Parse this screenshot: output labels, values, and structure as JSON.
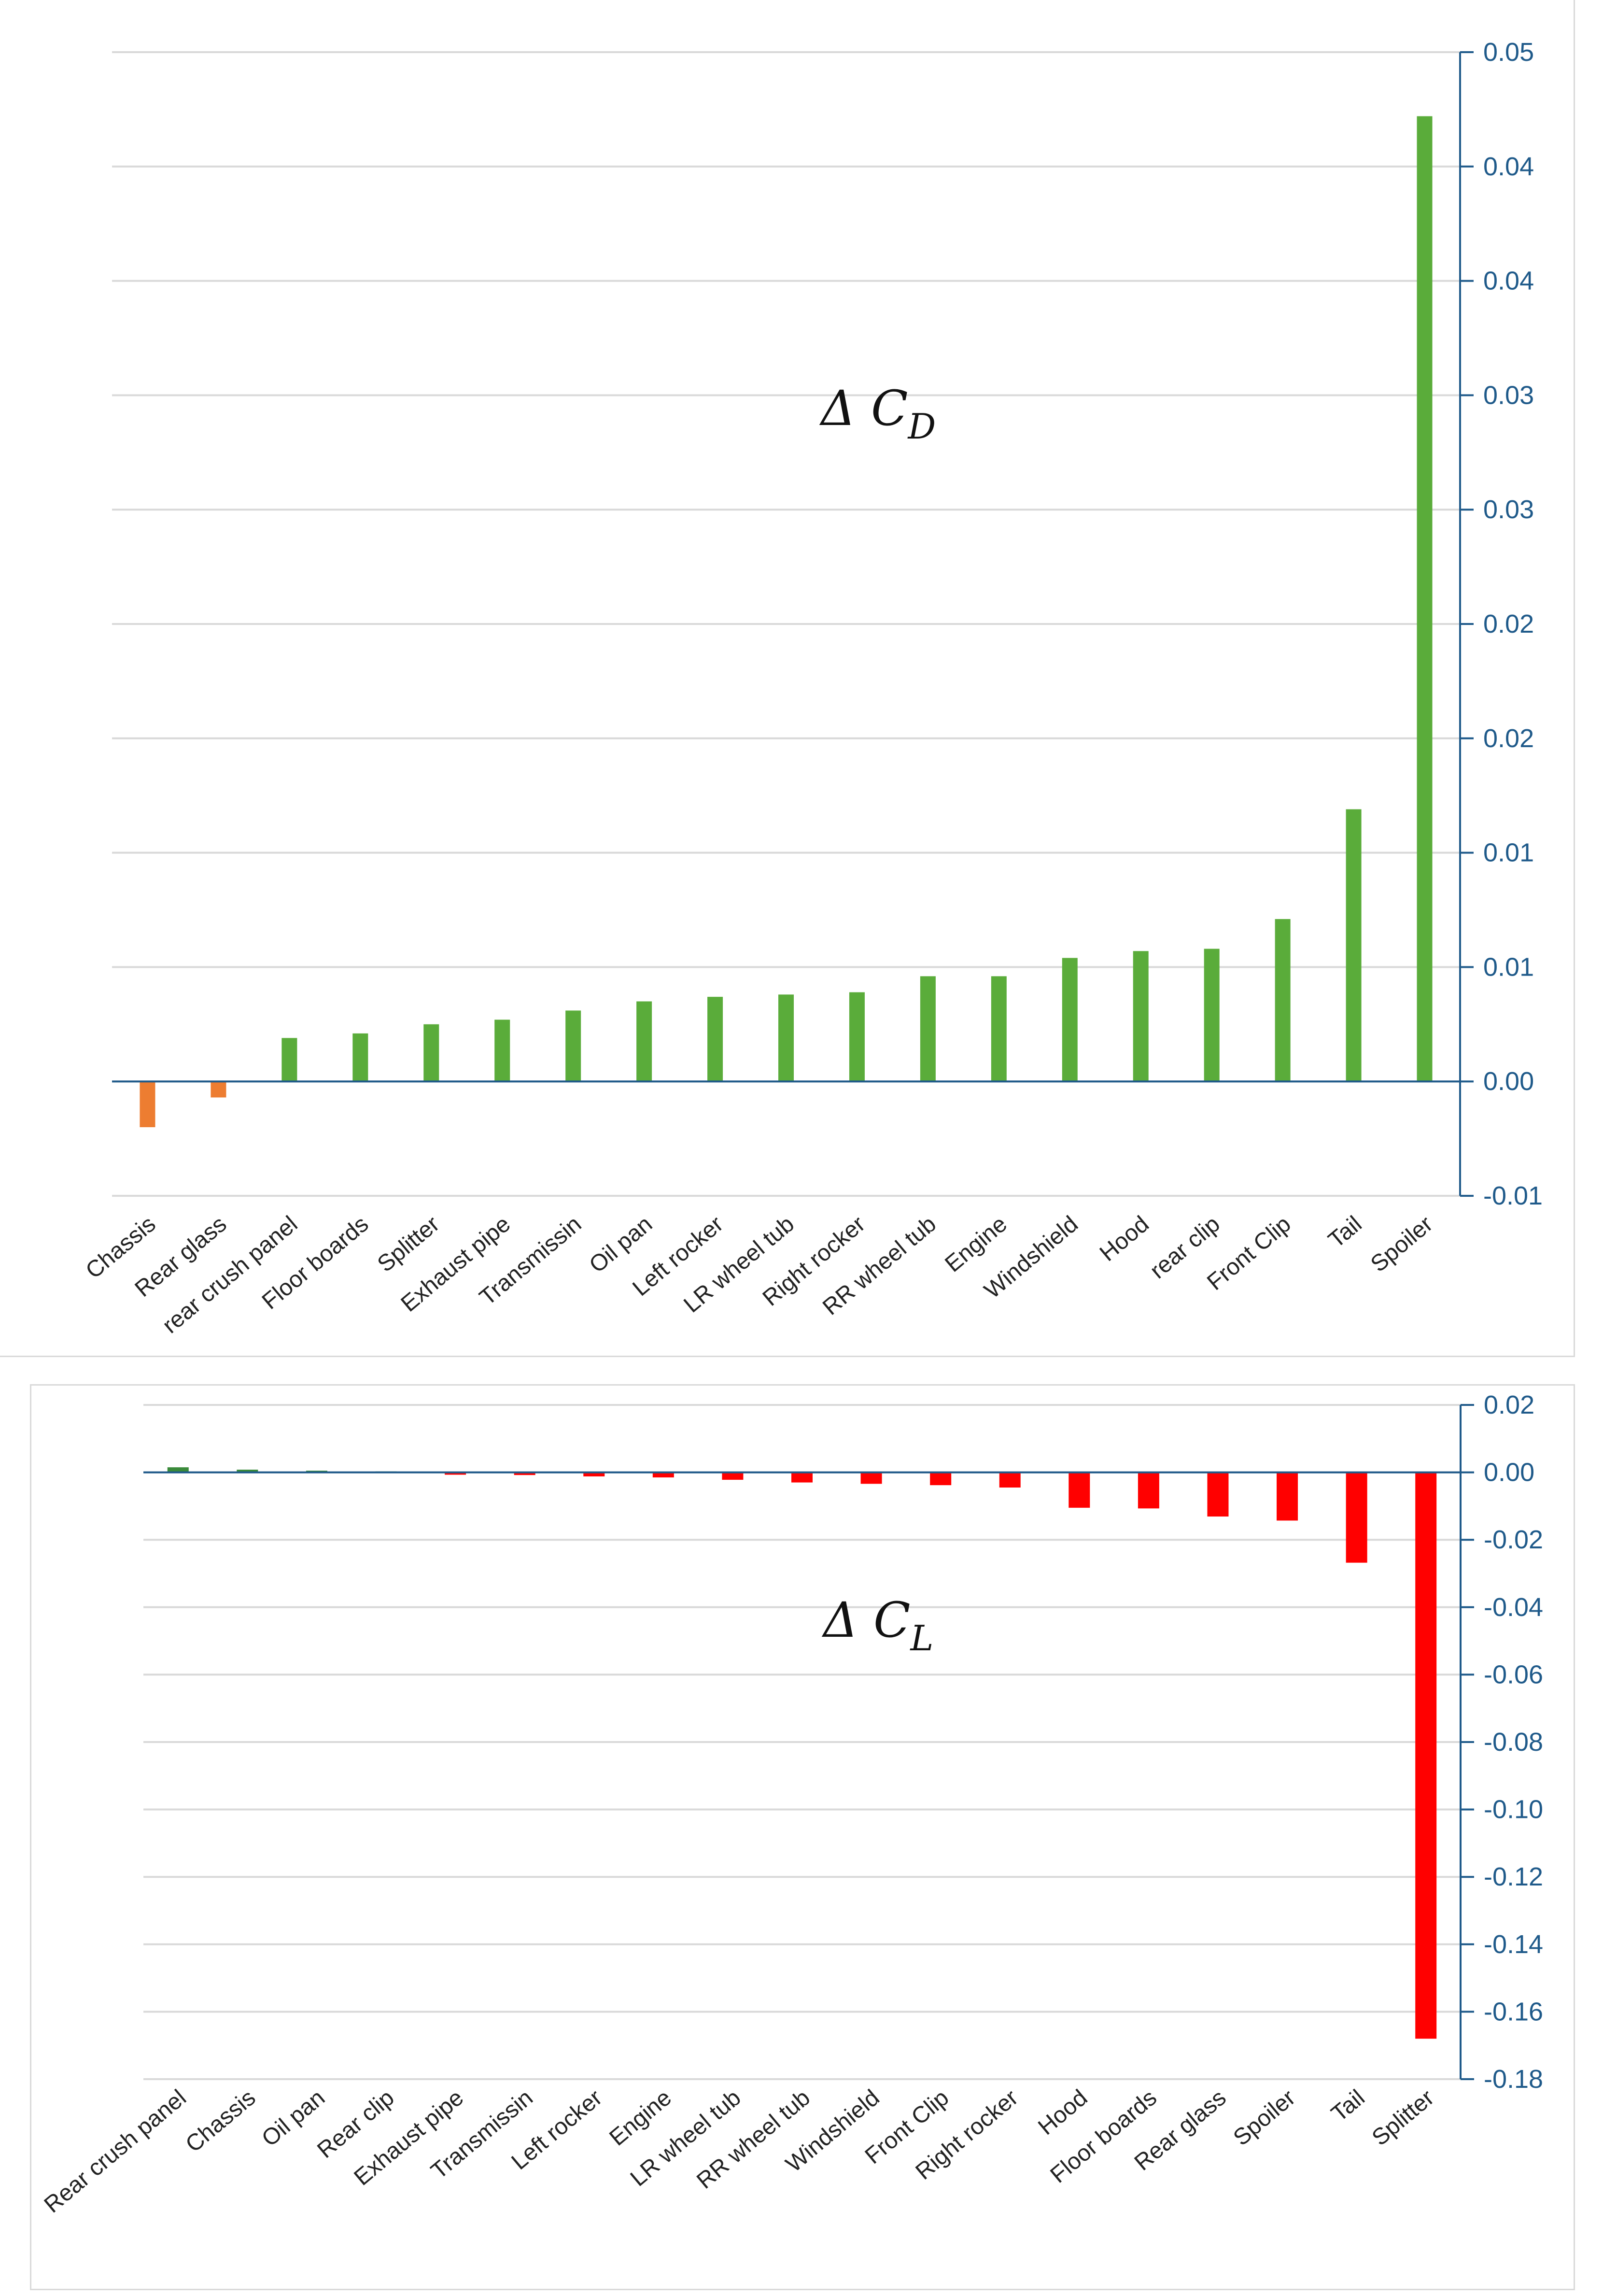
{
  "chart_data": [
    {
      "type": "bar",
      "title": "Δ C_D",
      "title_main": "Δ C",
      "title_sub": "D",
      "categories": [
        "Chassis",
        "Rear glass",
        "rear crush panel",
        "Floor boards",
        "Splitter",
        "Exhaust pipe",
        "Transmissin",
        "Oil pan",
        "Left rocker",
        "LR wheel tub",
        "Right rocker",
        "RR wheel tub",
        "Engine",
        "Windshield",
        "Hood",
        "rear clip",
        "Front Clip",
        "Tail",
        "Spoiler"
      ],
      "values": [
        -0.002,
        -0.0007,
        0.0019,
        0.0021,
        0.0025,
        0.0027,
        0.0031,
        0.0035,
        0.0037,
        0.0038,
        0.0039,
        0.0046,
        0.0046,
        0.0054,
        0.0057,
        0.0058,
        0.0071,
        0.0119,
        0.0422
      ],
      "colors": [
        "#ed7d31",
        "#ed7d31",
        "#5aac3a",
        "#5aac3a",
        "#5aac3a",
        "#5aac3a",
        "#5aac3a",
        "#5aac3a",
        "#5aac3a",
        "#5aac3a",
        "#5aac3a",
        "#5aac3a",
        "#5aac3a",
        "#5aac3a",
        "#5aac3a",
        "#5aac3a",
        "#5aac3a",
        "#5aac3a",
        "#5aac3a"
      ],
      "yticks": [
        -0.005,
        0,
        0.005,
        0.01,
        0.015,
        0.02,
        0.025,
        0.03,
        0.035,
        0.04,
        0.045
      ],
      "ytick_labels": [
        "-0.01",
        "0.00",
        "0.01",
        "0.01",
        "0.02",
        "0.02",
        "0.03",
        "0.03",
        "0.04",
        "0.04",
        "0.05"
      ],
      "ylim": [
        -0.005,
        0.045
      ],
      "xlabel": "",
      "ylabel": "",
      "grid": true,
      "axis_color": "#1f5a8a"
    },
    {
      "type": "bar",
      "title": "Δ C_L",
      "title_main": "Δ C",
      "title_sub": "L",
      "categories": [
        "Rear crush panel",
        "Chassis",
        "Oil pan",
        "Rear clip",
        "Exhaust pipe",
        "Transmissin",
        "Left rocker",
        "Engine",
        "LR wheel tub",
        "RR wheel tub",
        "Windshield",
        "Front Clip",
        "Right rocker",
        "Hood",
        "Floor boards",
        "Rear glass",
        "Spoiler",
        "Tail",
        "Splitter"
      ],
      "values": [
        0.0015,
        0.0008,
        0.0005,
        0.0003,
        -0.0007,
        -0.0008,
        -0.0012,
        -0.0015,
        -0.0022,
        -0.003,
        -0.0034,
        -0.0038,
        -0.0045,
        -0.0105,
        -0.0107,
        -0.0131,
        -0.0143,
        -0.0268,
        -0.168
      ],
      "colors": [
        "#3a8a3a",
        "#3a8a3a",
        "#3a8a3a",
        "#3a8a3a",
        "#ff0000",
        "#ff0000",
        "#ff0000",
        "#ff0000",
        "#ff0000",
        "#ff0000",
        "#ff0000",
        "#ff0000",
        "#ff0000",
        "#ff0000",
        "#ff0000",
        "#ff0000",
        "#ff0000",
        "#ff0000",
        "#ff0000"
      ],
      "yticks": [
        0.02,
        0.0,
        -0.02,
        -0.04,
        -0.06,
        -0.08,
        -0.1,
        -0.12,
        -0.14,
        -0.16,
        -0.18
      ],
      "ytick_labels": [
        "0.02",
        "0.00",
        "-0.02",
        "-0.04",
        "-0.06",
        "-0.08",
        "-0.10",
        "-0.12",
        "-0.14",
        "-0.16",
        "-0.18"
      ],
      "ylim": [
        -0.18,
        0.02
      ],
      "xlabel": "",
      "ylabel": "",
      "grid": true,
      "axis_color": "#1f5a8a"
    }
  ]
}
